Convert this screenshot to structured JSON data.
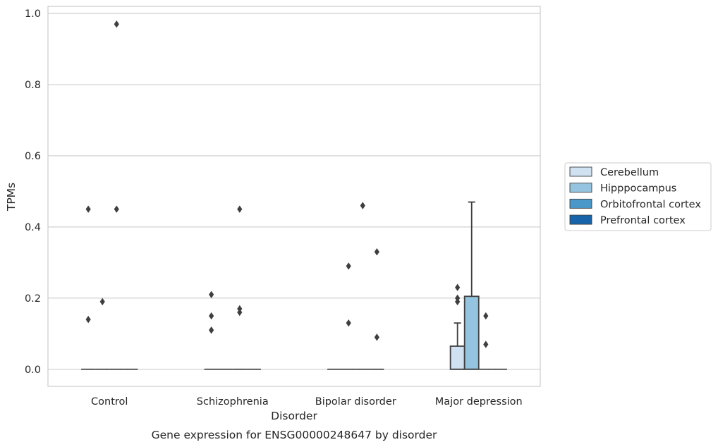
{
  "chart_data": {
    "type": "box",
    "title": "",
    "caption": "Gene expression for ENSG00000248647 by disorder",
    "xlabel": "Disorder",
    "ylabel": "TPMs",
    "ylim": [
      -0.048,
      1.02
    ],
    "yticks": [
      "0.0",
      "0.2",
      "0.4",
      "0.6",
      "0.8",
      "1.0"
    ],
    "grid": "horizontal",
    "legend_position": "right",
    "categories": [
      "Control",
      "Schizophrenia",
      "Bipolar disorder",
      "Major depression"
    ],
    "series": [
      {
        "name": "Cerebellum",
        "color": "#d0e1f2",
        "boxes": [
          {
            "q1": 0,
            "median": 0,
            "q3": 0,
            "whisker_low": 0,
            "whisker_high": 0,
            "outliers": [
              0.14,
              0.45
            ]
          },
          {
            "q1": 0,
            "median": 0,
            "q3": 0,
            "whisker_low": 0,
            "whisker_high": 0,
            "outliers": [
              0.11,
              0.15,
              0.21
            ]
          },
          {
            "q1": 0,
            "median": 0,
            "q3": 0,
            "whisker_low": 0,
            "whisker_high": 0,
            "outliers": []
          },
          {
            "q1": 0,
            "median": 0,
            "q3": 0.065,
            "whisker_low": 0,
            "whisker_high": 0.13,
            "outliers": [
              0.19,
              0.2,
              0.23
            ]
          }
        ]
      },
      {
        "name": "Hipppocampus",
        "color": "#94c4df",
        "boxes": [
          {
            "q1": 0,
            "median": 0,
            "q3": 0,
            "whisker_low": 0,
            "whisker_high": 0,
            "outliers": [
              0.19
            ]
          },
          {
            "q1": 0,
            "median": 0,
            "q3": 0,
            "whisker_low": 0,
            "whisker_high": 0,
            "outliers": []
          },
          {
            "q1": 0,
            "median": 0,
            "q3": 0,
            "whisker_low": 0,
            "whisker_high": 0,
            "outliers": [
              0.13,
              0.29
            ]
          },
          {
            "q1": 0,
            "median": 0,
            "q3": 0.205,
            "whisker_low": 0,
            "whisker_high": 0.47,
            "outliers": []
          }
        ]
      },
      {
        "name": "Orbitofrontal cortex",
        "color": "#4a98c9",
        "boxes": [
          {
            "q1": 0,
            "median": 0,
            "q3": 0,
            "whisker_low": 0,
            "whisker_high": 0,
            "outliers": [
              0.97,
              0.45
            ]
          },
          {
            "q1": 0,
            "median": 0,
            "q3": 0,
            "whisker_low": 0,
            "whisker_high": 0,
            "outliers": [
              0.45,
              0.16,
              0.17
            ]
          },
          {
            "q1": 0,
            "median": 0,
            "q3": 0,
            "whisker_low": 0,
            "whisker_high": 0,
            "outliers": [
              0.46
            ]
          },
          {
            "q1": 0,
            "median": 0,
            "q3": 0,
            "whisker_low": 0,
            "whisker_high": 0,
            "outliers": [
              0.07,
              0.15
            ]
          }
        ]
      },
      {
        "name": "Prefrontal cortex",
        "color": "#1764ab",
        "boxes": [
          {
            "q1": 0,
            "median": 0,
            "q3": 0,
            "whisker_low": 0,
            "whisker_high": 0,
            "outliers": []
          },
          {
            "q1": 0,
            "median": 0,
            "q3": 0,
            "whisker_low": 0,
            "whisker_high": 0,
            "outliers": []
          },
          {
            "q1": 0,
            "median": 0,
            "q3": 0,
            "whisker_low": 0,
            "whisker_high": 0,
            "outliers": [
              0.09,
              0.33
            ]
          },
          {
            "q1": 0,
            "median": 0,
            "q3": 0,
            "whisker_low": 0,
            "whisker_high": 0,
            "outliers": []
          }
        ]
      }
    ]
  }
}
